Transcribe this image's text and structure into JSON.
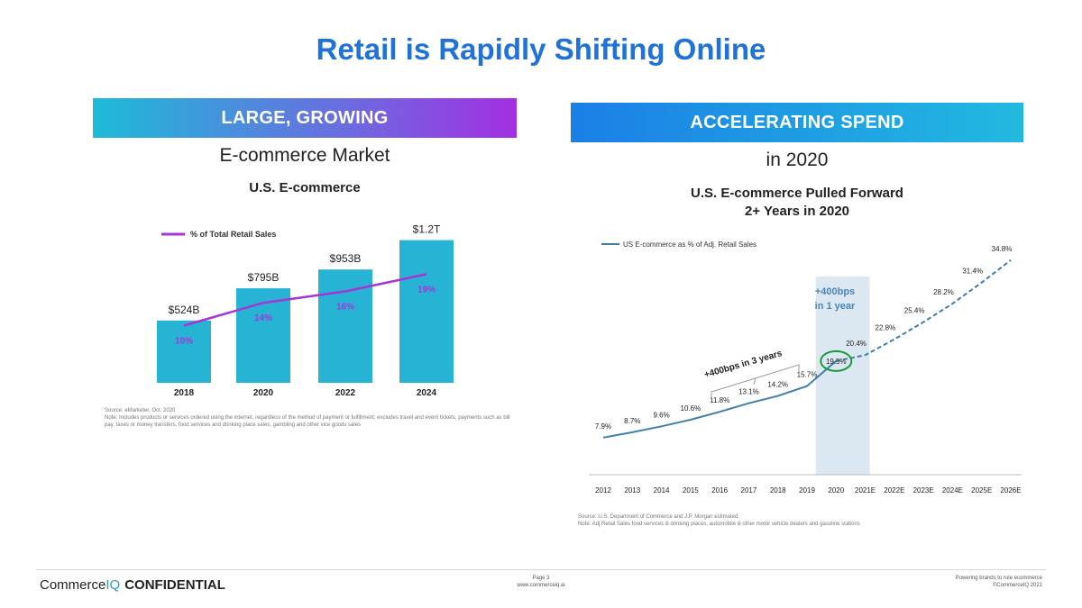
{
  "title": "Retail is Rapidly Shifting Online",
  "left": {
    "banner": "LARGE, GROWING",
    "subtitle": "E-commerce Market",
    "source": "Source: eMarketer, Oct. 2020",
    "note": "Note: Includes products or services ordered using the internet, regardless of the method of payment or fulfillment; excludes travel and event tickets, payments such as bill pay, taxes or money transfers, food services and drinking place sales, gambling and other vice goods sales"
  },
  "right": {
    "banner": "ACCELERATING SPEND",
    "subtitle": "in 2020",
    "source": "Source: U.S. Department of Commerce and J.P. Morgan estimated.",
    "note": "Note: Adj Retail Sales food services & drinking places, automobile & other motor vehicle dealers and gasoline stations"
  },
  "chart_data": [
    {
      "type": "bar",
      "title": "U.S. E-commerce",
      "categories": [
        "2018",
        "2020",
        "2022",
        "2024"
      ],
      "values": [
        524,
        795,
        953,
        1200
      ],
      "value_labels": [
        "$524B",
        "$795B",
        "$953B",
        "$1.2T"
      ],
      "ylim": [
        0,
        1250
      ],
      "bar_color": "#27b3d4",
      "series": [
        {
          "name": "% of Total Retail Sales",
          "type": "line",
          "values": [
            10,
            14,
            16,
            19
          ],
          "labels": [
            "10%",
            "14%",
            "16%",
            "19%"
          ],
          "color": "#a734d6",
          "ylim": [
            0,
            26
          ]
        }
      ],
      "legend": "top-left"
    },
    {
      "type": "line",
      "title": "U.S. E-commerce Pulled Forward",
      "subtitle": "2+ Years in 2020",
      "categories": [
        "2012",
        "2013",
        "2014",
        "2015",
        "2016",
        "2017",
        "2018",
        "2019",
        "2020",
        "2021E",
        "2022E",
        "2023E",
        "2024E",
        "2025E",
        "2026E"
      ],
      "series": [
        {
          "name": "US E-commerce as % of Adj. Retail Sales",
          "values": [
            7.9,
            8.7,
            9.6,
            10.6,
            11.8,
            13.1,
            14.2,
            15.7,
            19.5,
            20.4,
            22.8,
            25.4,
            28.2,
            31.4,
            34.8
          ],
          "labels": [
            "7.9%",
            "8.7%",
            "9.6%",
            "10.6%",
            "11.8%",
            "13.1%",
            "14.2%",
            "15.7%",
            "19.5%",
            "20.4%",
            "22.8%",
            "25.4%",
            "28.2%",
            "31.4%",
            "34.8%"
          ],
          "actual_through": "2020",
          "color": "#3f7fa8"
        }
      ],
      "ylim": [
        5,
        36
      ],
      "legend": "top-left",
      "annotations": {
        "highlight_2020": "+400bps",
        "highlight_2020_line2": "in 1 year",
        "bracket": "+400bps in 3 years"
      }
    }
  ],
  "footer": {
    "brand_a": "Commerce",
    "brand_b": "IQ",
    "confidential": "CONFIDENTIAL",
    "page": "Page 3",
    "site": "www.commerceiq.ai",
    "tagline": "Powering brands to rule ecommerce",
    "copyright": "©CommerceIQ 2021"
  }
}
